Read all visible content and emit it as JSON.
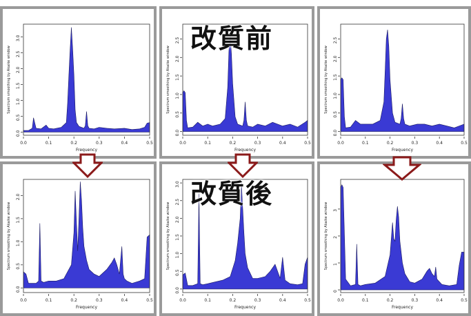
{
  "overlay": {
    "before_label": "改質前",
    "after_label": "改質後"
  },
  "colors": {
    "fill": "#3a3ad4",
    "arrow_stroke": "#8b1a1a",
    "frame": "#9a9a9a"
  },
  "chart_data": [
    {
      "type": "area",
      "xlabel": "Frequency",
      "ylabel": "Spectrum smoothing by  Akaike window",
      "xlim": [
        0,
        0.5
      ],
      "ylim": [
        -0.1,
        3.4
      ],
      "xticks": [
        "0.0",
        "0.1",
        "0.2",
        "0.3",
        "0.4",
        "0.5"
      ],
      "yticks": [
        "0.0",
        "0.5",
        "1.0",
        "1.5",
        "2.0",
        "2.5",
        "3.0"
      ],
      "ytick_values": [
        0,
        0.5,
        1,
        1.5,
        2,
        2.5,
        3
      ],
      "x": [
        0,
        0.02,
        0.035,
        0.04,
        0.05,
        0.07,
        0.09,
        0.1,
        0.12,
        0.15,
        0.17,
        0.175,
        0.18,
        0.185,
        0.19,
        0.195,
        0.2,
        0.205,
        0.21,
        0.22,
        0.24,
        0.245,
        0.25,
        0.255,
        0.26,
        0.28,
        0.3,
        0.33,
        0.36,
        0.4,
        0.43,
        0.46,
        0.48,
        0.49,
        0.5
      ],
      "y": [
        0.05,
        0.05,
        0.12,
        0.45,
        0.12,
        0.1,
        0.22,
        0.12,
        0.1,
        0.15,
        0.3,
        0.9,
        1.8,
        2.6,
        3.3,
        2.6,
        1.8,
        0.7,
        0.3,
        0.18,
        0.12,
        0.2,
        0.65,
        0.2,
        0.12,
        0.1,
        0.15,
        0.12,
        0.1,
        0.12,
        0.08,
        0.1,
        0.15,
        0.28,
        0.3
      ]
    },
    {
      "type": "area",
      "xlabel": "Frequency",
      "ylabel": "Spectrum smoothing by  Akaike window",
      "xlim": [
        0,
        0.5
      ],
      "ylim": [
        -0.1,
        2.9
      ],
      "xticks": [
        "0.0",
        "0.1",
        "0.2",
        "0.3",
        "0.4",
        "0.5"
      ],
      "yticks": [
        "0.0",
        "0.5",
        "1.0",
        "1.5",
        "2.0",
        "2.5"
      ],
      "ytick_values": [
        0,
        0.5,
        1,
        1.5,
        2,
        2.5
      ],
      "x": [
        0,
        0.005,
        0.01,
        0.015,
        0.02,
        0.04,
        0.06,
        0.08,
        0.1,
        0.12,
        0.15,
        0.17,
        0.18,
        0.185,
        0.19,
        0.195,
        0.2,
        0.21,
        0.22,
        0.24,
        0.245,
        0.25,
        0.255,
        0.26,
        0.28,
        0.3,
        0.33,
        0.36,
        0.4,
        0.43,
        0.46,
        0.49,
        0.5
      ],
      "y": [
        1.05,
        1.1,
        1.05,
        0.3,
        0.1,
        0.12,
        0.25,
        0.15,
        0.2,
        0.15,
        0.2,
        0.35,
        1.2,
        2.2,
        2.6,
        2.1,
        1.3,
        0.4,
        0.2,
        0.15,
        0.3,
        0.8,
        0.3,
        0.15,
        0.12,
        0.2,
        0.15,
        0.25,
        0.15,
        0.2,
        0.12,
        0.25,
        0.3
      ]
    },
    {
      "type": "area",
      "xlabel": "Frequency",
      "ylabel": "Spectrum smoothing by  Akaike window",
      "xlim": [
        0,
        0.5
      ],
      "ylim": [
        -0.1,
        2.9
      ],
      "xticks": [
        "0.0",
        "0.1",
        "0.2",
        "0.3",
        "0.4",
        "0.5"
      ],
      "yticks": [
        "0.0",
        "0.5",
        "1.0",
        "1.5",
        "2.0",
        "2.5"
      ],
      "ytick_values": [
        0,
        0.5,
        1,
        1.5,
        2,
        2.5
      ],
      "x": [
        0,
        0.005,
        0.01,
        0.015,
        0.02,
        0.04,
        0.06,
        0.08,
        0.1,
        0.13,
        0.16,
        0.175,
        0.18,
        0.185,
        0.19,
        0.195,
        0.2,
        0.21,
        0.22,
        0.24,
        0.245,
        0.25,
        0.255,
        0.26,
        0.28,
        0.31,
        0.34,
        0.37,
        0.4,
        0.43,
        0.46,
        0.48,
        0.5
      ],
      "y": [
        1.4,
        1.45,
        1.4,
        0.4,
        0.1,
        0.12,
        0.3,
        0.2,
        0.2,
        0.2,
        0.3,
        0.8,
        1.6,
        2.5,
        2.75,
        2.3,
        1.4,
        0.5,
        0.25,
        0.2,
        0.35,
        0.75,
        0.35,
        0.2,
        0.15,
        0.2,
        0.2,
        0.15,
        0.2,
        0.15,
        0.1,
        0.15,
        0.2
      ]
    },
    {
      "type": "area",
      "xlabel": "Frequency",
      "ylabel": "Spectrum smoothing by  Akaike window",
      "xlim": [
        0,
        0.5
      ],
      "ylim": [
        -0.1,
        2.35
      ],
      "xticks": [
        "0.0",
        "0.1",
        "0.2",
        "0.3",
        "0.4",
        "0.5"
      ],
      "yticks": [
        "0.0",
        "0.5",
        "1.0",
        "1.5",
        "2.0"
      ],
      "ytick_values": [
        0,
        0.5,
        1,
        1.5,
        2
      ],
      "x": [
        0,
        0.01,
        0.02,
        0.03,
        0.05,
        0.06,
        0.065,
        0.07,
        0.08,
        0.1,
        0.13,
        0.16,
        0.19,
        0.2,
        0.205,
        0.21,
        0.215,
        0.22,
        0.225,
        0.23,
        0.235,
        0.24,
        0.25,
        0.26,
        0.28,
        0.3,
        0.33,
        0.35,
        0.36,
        0.37,
        0.38,
        0.39,
        0.395,
        0.4,
        0.41,
        0.43,
        0.46,
        0.48,
        0.49,
        0.5
      ],
      "y": [
        0.35,
        0.3,
        0.1,
        0.1,
        0.1,
        0.15,
        1.4,
        0.15,
        0.12,
        0.15,
        0.15,
        0.2,
        0.5,
        1.2,
        2.1,
        1.4,
        0.8,
        1.5,
        2.3,
        1.9,
        1.3,
        0.9,
        0.6,
        0.4,
        0.3,
        0.25,
        0.4,
        0.55,
        0.65,
        0.5,
        0.3,
        0.9,
        0.3,
        0.2,
        0.15,
        0.1,
        0.15,
        0.2,
        1.1,
        1.15
      ]
    },
    {
      "type": "area",
      "xlabel": "Frequency",
      "ylabel": "Spectrum smoothing by  Akaike window",
      "xlim": [
        0,
        0.5
      ],
      "ylim": [
        -0.1,
        3.1
      ],
      "xticks": [
        "0.0",
        "0.1",
        "0.2",
        "0.3",
        "0.4",
        "0.5"
      ],
      "yticks": [
        "0.0",
        "0.5",
        "1.0",
        "1.5",
        "2.0",
        "2.5",
        "3.0"
      ],
      "ytick_values": [
        0,
        0.5,
        1,
        1.5,
        2,
        2.5,
        3
      ],
      "x": [
        0,
        0.01,
        0.02,
        0.04,
        0.06,
        0.065,
        0.07,
        0.08,
        0.1,
        0.13,
        0.16,
        0.19,
        0.21,
        0.22,
        0.23,
        0.235,
        0.24,
        0.245,
        0.25,
        0.26,
        0.28,
        0.3,
        0.33,
        0.35,
        0.37,
        0.38,
        0.39,
        0.4,
        0.41,
        0.43,
        0.46,
        0.48,
        0.49,
        0.5
      ],
      "y": [
        0.4,
        0.45,
        0.1,
        0.1,
        0.15,
        2.7,
        0.15,
        0.12,
        0.15,
        0.2,
        0.25,
        0.35,
        0.8,
        1.3,
        2.0,
        3.0,
        2.3,
        1.6,
        1.0,
        0.6,
        0.3,
        0.3,
        0.35,
        0.5,
        0.7,
        0.5,
        0.3,
        0.9,
        0.25,
        0.15,
        0.12,
        0.15,
        0.7,
        0.9
      ]
    },
    {
      "type": "area",
      "xlabel": "Frequency",
      "ylabel": "Spectrum smoothing by  Akaike window",
      "xlim": [
        0,
        0.5
      ],
      "ylim": [
        -0.1,
        4.1
      ],
      "xticks": [
        "0.0",
        "0.1",
        "0.2",
        "0.3",
        "0.4",
        "0.5"
      ],
      "yticks": [
        "0",
        "1",
        "2",
        "3"
      ],
      "ytick_values": [
        0,
        1,
        2,
        3
      ],
      "x": [
        0,
        0.005,
        0.01,
        0.02,
        0.04,
        0.06,
        0.065,
        0.07,
        0.08,
        0.1,
        0.14,
        0.18,
        0.2,
        0.21,
        0.215,
        0.22,
        0.225,
        0.23,
        0.235,
        0.24,
        0.25,
        0.26,
        0.28,
        0.3,
        0.33,
        0.35,
        0.36,
        0.37,
        0.38,
        0.385,
        0.39,
        0.41,
        0.44,
        0.47,
        0.48,
        0.49,
        0.5
      ],
      "y": [
        3.8,
        3.9,
        3.8,
        0.4,
        0.15,
        0.2,
        1.7,
        0.2,
        0.15,
        0.2,
        0.25,
        0.5,
        1.3,
        2.5,
        1.9,
        1.8,
        2.6,
        3.1,
        2.7,
        1.8,
        1.0,
        0.6,
        0.3,
        0.25,
        0.4,
        0.7,
        0.8,
        0.6,
        0.5,
        0.85,
        0.4,
        0.2,
        0.15,
        0.2,
        0.9,
        1.4,
        1.4
      ]
    }
  ]
}
